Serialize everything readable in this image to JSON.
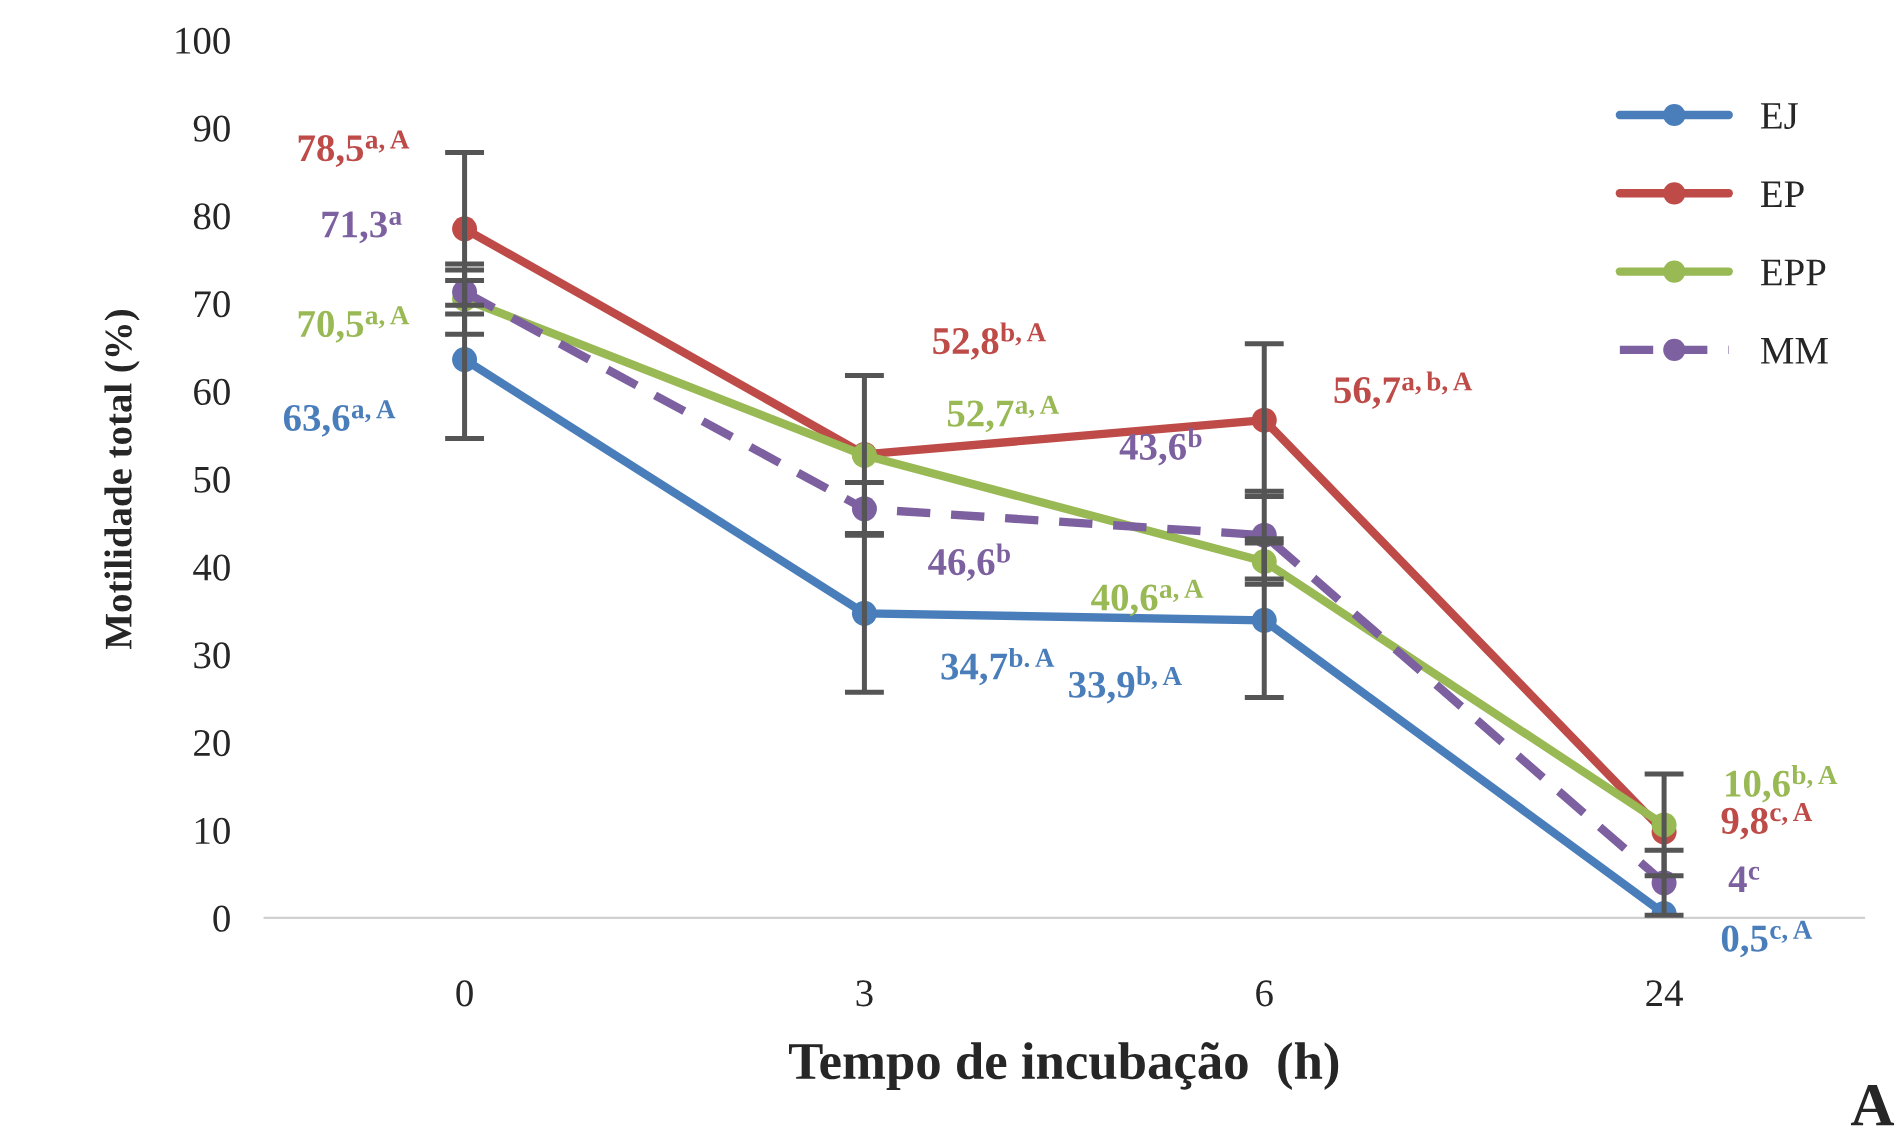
{
  "chart_data": {
    "type": "line",
    "xlabel": "Tempo de incubação  (h)",
    "ylabel": "Motilidade total (%)",
    "categories": [
      "0",
      "3",
      "6",
      "24"
    ],
    "ylim": [
      0,
      100
    ],
    "yticks": [
      0,
      10,
      20,
      30,
      40,
      50,
      60,
      70,
      80,
      90,
      100
    ],
    "grid": false,
    "legend": "top right",
    "marker": "circle",
    "annotations": [
      "A"
    ],
    "series": [
      {
        "name": "EJ",
        "color": "#4a7ebb",
        "values": [
          63.6,
          34.7,
          33.9,
          0.5
        ],
        "errors": [
          9,
          9,
          8.8,
          null
        ],
        "value_labels": [
          "63,6$^{a,A}$",
          "34,7$^{b.A}$",
          "33,9$^{b,A}$",
          "0,5$^{c,A}$"
        ]
      },
      {
        "name": "EP",
        "color": "#be4b48",
        "values": [
          78.5,
          52.8,
          56.7,
          9.8
        ],
        "errors": [
          8.7,
          9,
          8.7,
          null
        ],
        "value_labels": [
          "78,5$^{a,A}$",
          "52,8$^{b,A}$",
          "56,7$^{a,b,A}$",
          "9,8$^{c,A}$"
        ]
      },
      {
        "name": "EPP",
        "color": "#98b954",
        "values": [
          70.5,
          52.7,
          40.6,
          10.6
        ],
        "errors": [
          4,
          null,
          2.6,
          5.8
        ],
        "value_labels": [
          "70,5$^{a,A}$",
          "52,7$^{a,A}$",
          "40,6$^{a,A}$",
          "10,6$^{b,A}$"
        ]
      },
      {
        "name": "MM",
        "color": "#7d60a0",
        "line_style": "dashed",
        "values": [
          71.3,
          46.6,
          43.6,
          4
        ],
        "errors": [
          2.5,
          3,
          5,
          3.7
        ],
        "value_labels": [
          "71,3$^{a}$",
          "46,6$^{b}$",
          "43,6$^{b}$",
          "4$^{c}$"
        ]
      }
    ]
  }
}
